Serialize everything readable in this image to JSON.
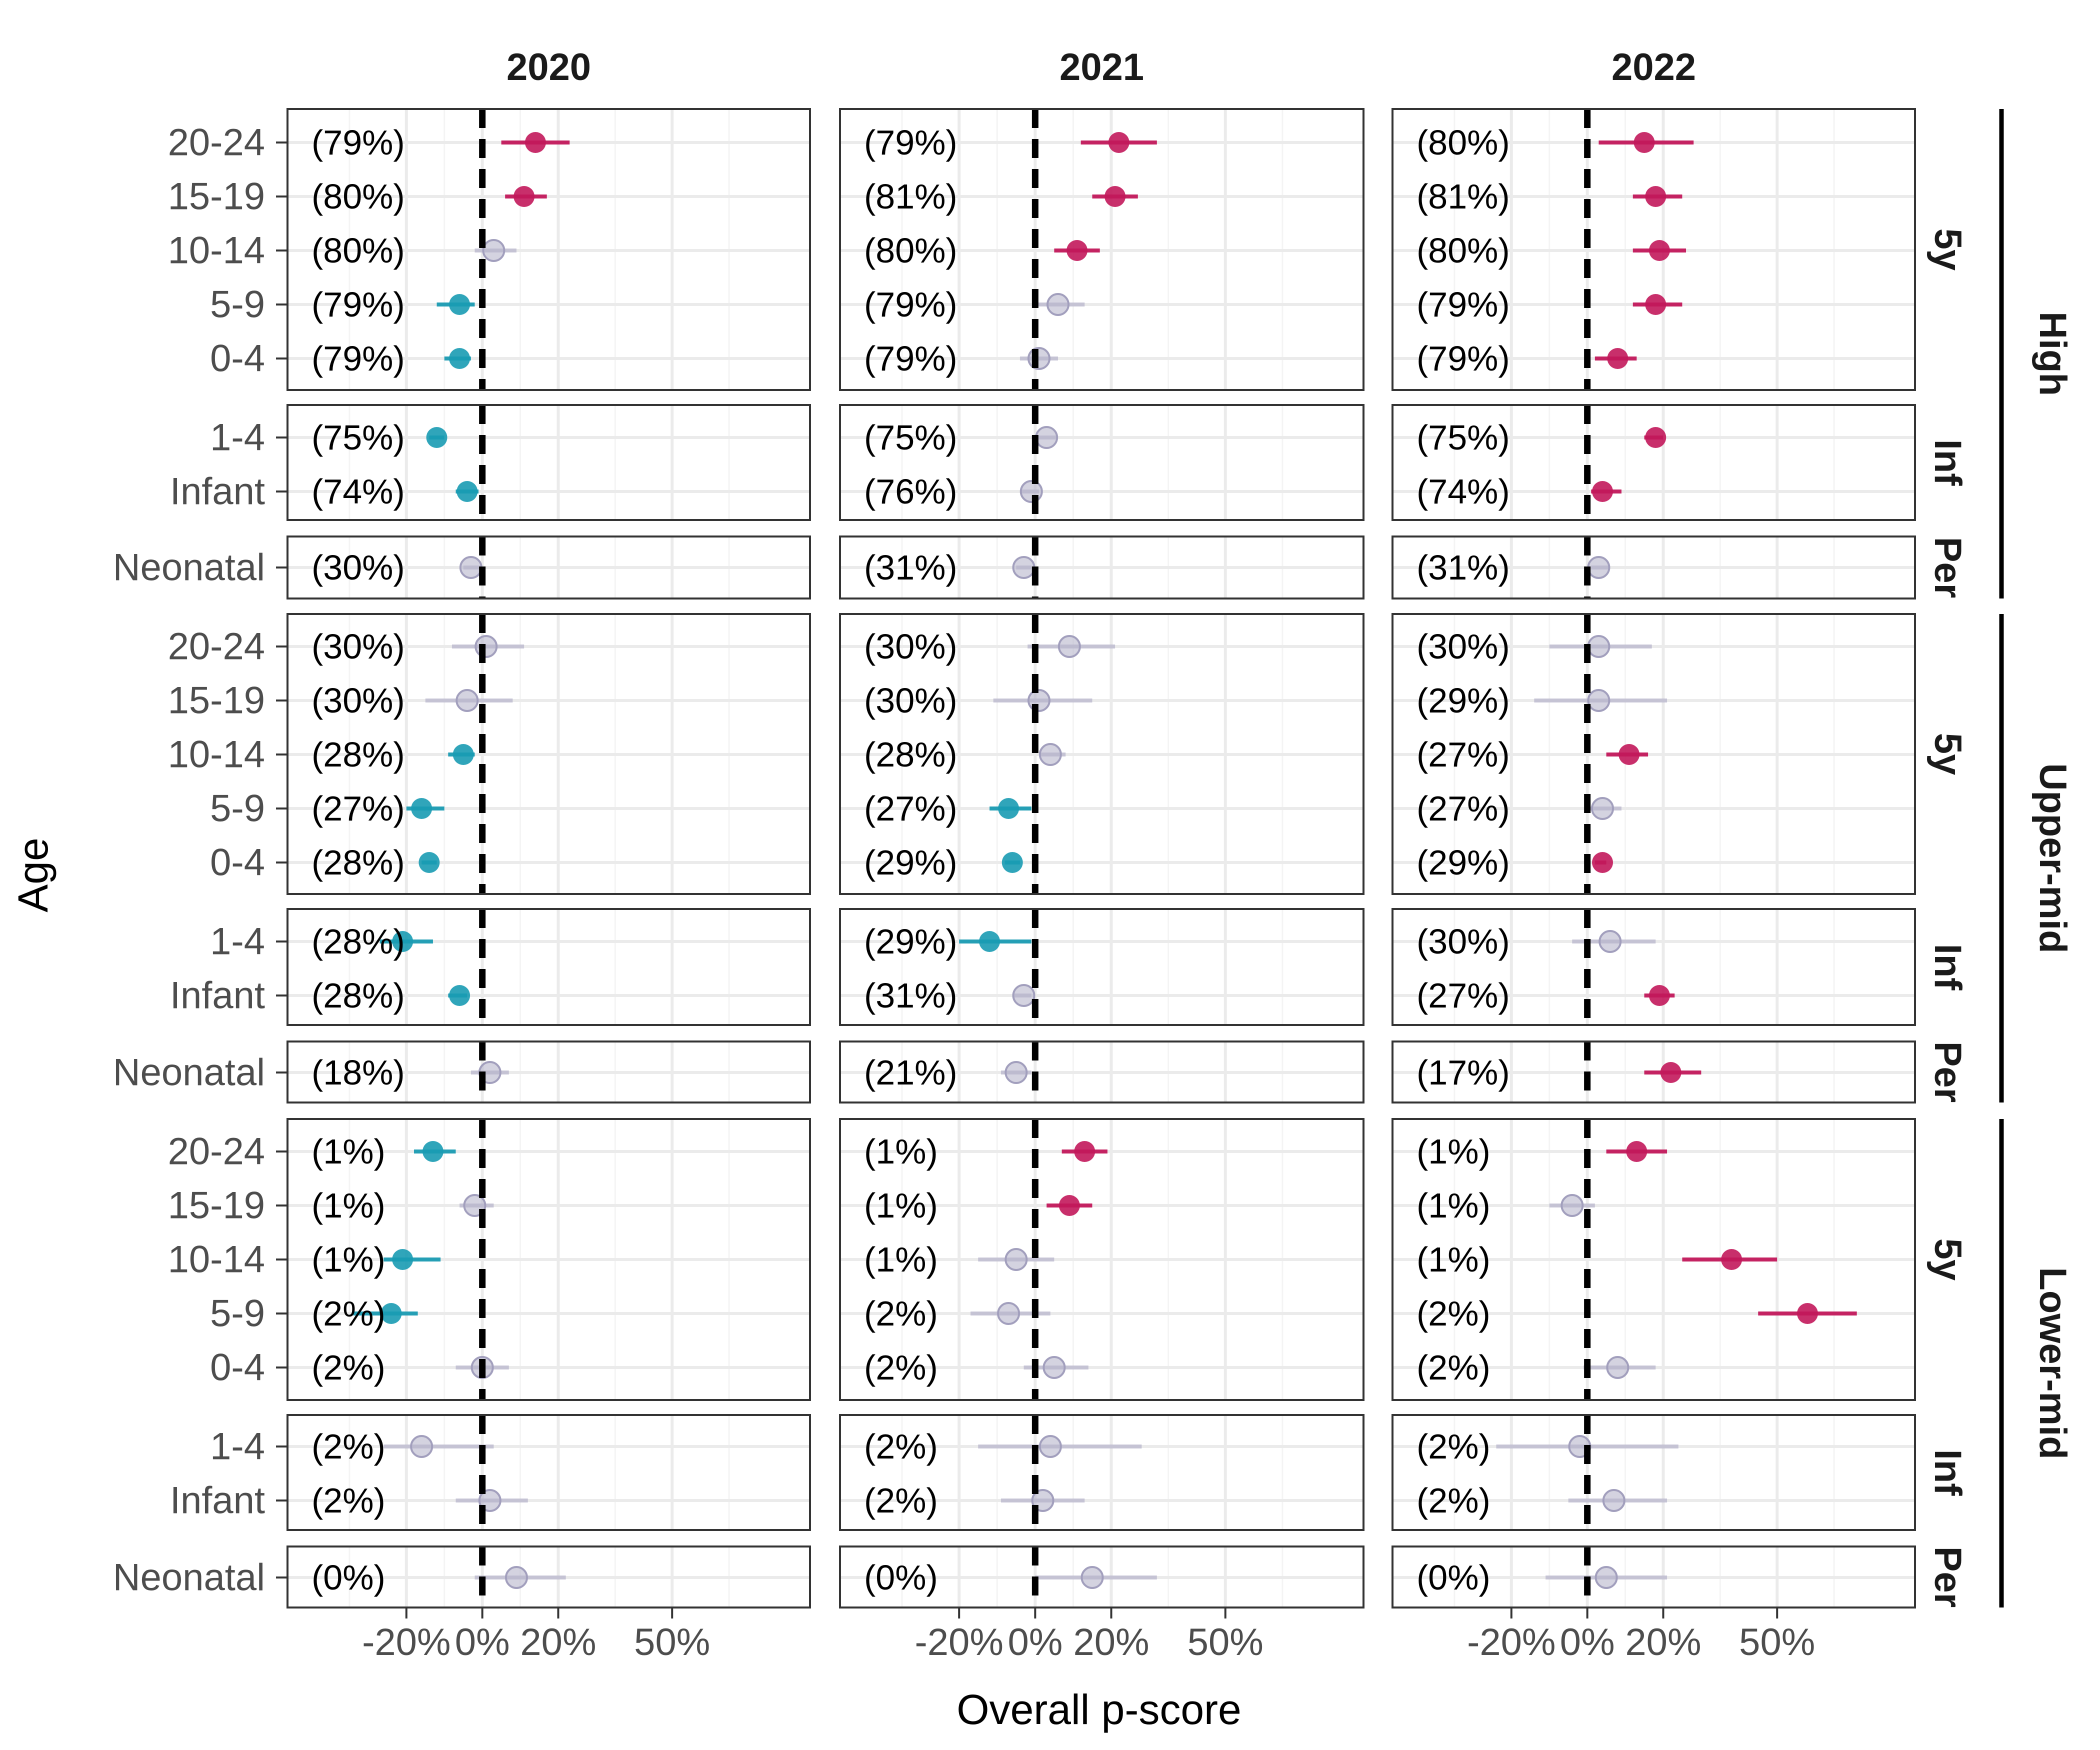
{
  "chart_data": {
    "type": "forest",
    "xlabel": "Overall p-score",
    "ylabel": "Age",
    "x_ticks": [
      {
        "value": -0.2,
        "label": "-20%"
      },
      {
        "value": 0.0,
        "label": "0%"
      },
      {
        "value": 0.2,
        "label": "20%"
      },
      {
        "value": 0.5,
        "label": "50%"
      }
    ],
    "xlim": [
      -0.45,
      0.8
    ],
    "reference_line": 0,
    "columns": [
      "2020",
      "2021",
      "2022"
    ],
    "income_groups": [
      "High",
      "Upper-mid",
      "Lower-mid"
    ],
    "subgroups": [
      {
        "label": "5y",
        "ages": [
          "20-24",
          "15-19",
          "10-14",
          "5-9",
          "0-4"
        ]
      },
      {
        "label": "Inf",
        "ages": [
          "1-4",
          "Infant"
        ]
      },
      {
        "label": "Per",
        "ages": [
          "Neonatal"
        ]
      }
    ],
    "colors": {
      "positive": "#c2185b",
      "negative": "#1a9bb2",
      "not_significant": "#b8b6cc"
    },
    "panels": {
      "High": {
        "2020": [
          {
            "age": "20-24",
            "est": 0.14,
            "lo": 0.05,
            "hi": 0.23,
            "sig": "positive",
            "pct": "(79%)"
          },
          {
            "age": "15-19",
            "est": 0.11,
            "lo": 0.06,
            "hi": 0.17,
            "sig": "positive",
            "pct": "(80%)"
          },
          {
            "age": "10-14",
            "est": 0.03,
            "lo": -0.02,
            "hi": 0.09,
            "sig": "ns",
            "pct": "(80%)"
          },
          {
            "age": "5-9",
            "est": -0.06,
            "lo": -0.12,
            "hi": -0.02,
            "sig": "negative",
            "pct": "(79%)"
          },
          {
            "age": "0-4",
            "est": -0.06,
            "lo": -0.1,
            "hi": -0.03,
            "sig": "negative",
            "pct": "(79%)"
          },
          {
            "age": "1-4",
            "est": -0.12,
            "lo": -0.14,
            "hi": -0.1,
            "sig": "negative",
            "pct": "(75%)"
          },
          {
            "age": "Infant",
            "est": -0.04,
            "lo": -0.07,
            "hi": -0.01,
            "sig": "negative",
            "pct": "(74%)"
          },
          {
            "age": "Neonatal",
            "est": -0.03,
            "lo": -0.05,
            "hi": 0.0,
            "sig": "ns",
            "pct": "(30%)"
          }
        ],
        "2021": [
          {
            "age": "20-24",
            "est": 0.22,
            "lo": 0.12,
            "hi": 0.32,
            "sig": "positive",
            "pct": "(79%)"
          },
          {
            "age": "15-19",
            "est": 0.21,
            "lo": 0.15,
            "hi": 0.27,
            "sig": "positive",
            "pct": "(81%)"
          },
          {
            "age": "10-14",
            "est": 0.11,
            "lo": 0.05,
            "hi": 0.17,
            "sig": "positive",
            "pct": "(80%)"
          },
          {
            "age": "5-9",
            "est": 0.06,
            "lo": 0.0,
            "hi": 0.13,
            "sig": "ns",
            "pct": "(79%)"
          },
          {
            "age": "0-4",
            "est": 0.01,
            "lo": -0.04,
            "hi": 0.06,
            "sig": "ns",
            "pct": "(79%)"
          },
          {
            "age": "1-4",
            "est": 0.03,
            "lo": 0.0,
            "hi": 0.06,
            "sig": "ns",
            "pct": "(75%)"
          },
          {
            "age": "Infant",
            "est": -0.01,
            "lo": -0.04,
            "hi": 0.01,
            "sig": "ns",
            "pct": "(76%)"
          },
          {
            "age": "Neonatal",
            "est": -0.03,
            "lo": -0.05,
            "hi": -0.01,
            "sig": "ns",
            "pct": "(31%)"
          }
        ],
        "2022": [
          {
            "age": "20-24",
            "est": 0.15,
            "lo": 0.03,
            "hi": 0.28,
            "sig": "positive",
            "pct": "(80%)"
          },
          {
            "age": "15-19",
            "est": 0.18,
            "lo": 0.12,
            "hi": 0.25,
            "sig": "positive",
            "pct": "(81%)"
          },
          {
            "age": "10-14",
            "est": 0.19,
            "lo": 0.12,
            "hi": 0.26,
            "sig": "positive",
            "pct": "(80%)"
          },
          {
            "age": "5-9",
            "est": 0.18,
            "lo": 0.12,
            "hi": 0.25,
            "sig": "positive",
            "pct": "(79%)"
          },
          {
            "age": "0-4",
            "est": 0.08,
            "lo": 0.02,
            "hi": 0.13,
            "sig": "positive",
            "pct": "(79%)"
          },
          {
            "age": "1-4",
            "est": 0.18,
            "lo": 0.15,
            "hi": 0.2,
            "sig": "positive",
            "pct": "(75%)"
          },
          {
            "age": "Infant",
            "est": 0.04,
            "lo": 0.01,
            "hi": 0.09,
            "sig": "positive",
            "pct": "(74%)"
          },
          {
            "age": "Neonatal",
            "est": 0.03,
            "lo": 0.01,
            "hi": 0.06,
            "sig": "ns",
            "pct": "(31%)"
          }
        ]
      },
      "Upper-mid": {
        "2020": [
          {
            "age": "20-24",
            "est": 0.01,
            "lo": -0.08,
            "hi": 0.11,
            "sig": "ns",
            "pct": "(30%)"
          },
          {
            "age": "15-19",
            "est": -0.04,
            "lo": -0.15,
            "hi": 0.08,
            "sig": "ns",
            "pct": "(30%)"
          },
          {
            "age": "10-14",
            "est": -0.05,
            "lo": -0.09,
            "hi": -0.02,
            "sig": "negative",
            "pct": "(28%)"
          },
          {
            "age": "5-9",
            "est": -0.16,
            "lo": -0.2,
            "hi": -0.1,
            "sig": "negative",
            "pct": "(27%)"
          },
          {
            "age": "0-4",
            "est": -0.14,
            "lo": -0.16,
            "hi": -0.12,
            "sig": "negative",
            "pct": "(28%)"
          },
          {
            "age": "1-4",
            "est": -0.21,
            "lo": -0.27,
            "hi": -0.13,
            "sig": "negative",
            "pct": "(28%)"
          },
          {
            "age": "Infant",
            "est": -0.06,
            "lo": -0.09,
            "hi": -0.04,
            "sig": "negative",
            "pct": "(28%)"
          },
          {
            "age": "Neonatal",
            "est": 0.02,
            "lo": -0.03,
            "hi": 0.07,
            "sig": "ns",
            "pct": "(18%)"
          }
        ],
        "2021": [
          {
            "age": "20-24",
            "est": 0.09,
            "lo": -0.02,
            "hi": 0.21,
            "sig": "ns",
            "pct": "(30%)"
          },
          {
            "age": "15-19",
            "est": 0.01,
            "lo": -0.11,
            "hi": 0.15,
            "sig": "ns",
            "pct": "(30%)"
          },
          {
            "age": "10-14",
            "est": 0.04,
            "lo": 0.01,
            "hi": 0.08,
            "sig": "ns",
            "pct": "(28%)"
          },
          {
            "age": "5-9",
            "est": -0.07,
            "lo": -0.12,
            "hi": -0.01,
            "sig": "negative",
            "pct": "(27%)"
          },
          {
            "age": "0-4",
            "est": -0.06,
            "lo": -0.08,
            "hi": -0.04,
            "sig": "negative",
            "pct": "(29%)"
          },
          {
            "age": "1-4",
            "est": -0.12,
            "lo": -0.2,
            "hi": -0.01,
            "sig": "negative",
            "pct": "(29%)"
          },
          {
            "age": "Infant",
            "est": -0.03,
            "lo": -0.06,
            "hi": -0.01,
            "sig": "ns",
            "pct": "(31%)"
          },
          {
            "age": "Neonatal",
            "est": -0.05,
            "lo": -0.09,
            "hi": -0.01,
            "sig": "ns",
            "pct": "(21%)"
          }
        ],
        "2022": [
          {
            "age": "20-24",
            "est": 0.03,
            "lo": -0.1,
            "hi": 0.17,
            "sig": "ns",
            "pct": "(30%)"
          },
          {
            "age": "15-19",
            "est": 0.03,
            "lo": -0.14,
            "hi": 0.21,
            "sig": "ns",
            "pct": "(29%)"
          },
          {
            "age": "10-14",
            "est": 0.11,
            "lo": 0.05,
            "hi": 0.16,
            "sig": "positive",
            "pct": "(27%)"
          },
          {
            "age": "5-9",
            "est": 0.04,
            "lo": 0.0,
            "hi": 0.09,
            "sig": "ns",
            "pct": "(27%)"
          },
          {
            "age": "0-4",
            "est": 0.04,
            "lo": 0.02,
            "hi": 0.05,
            "sig": "positive",
            "pct": "(29%)"
          },
          {
            "age": "1-4",
            "est": 0.06,
            "lo": -0.04,
            "hi": 0.18,
            "sig": "ns",
            "pct": "(30%)"
          },
          {
            "age": "Infant",
            "est": 0.19,
            "lo": 0.15,
            "hi": 0.23,
            "sig": "positive",
            "pct": "(27%)"
          },
          {
            "age": "Neonatal",
            "est": 0.22,
            "lo": 0.15,
            "hi": 0.3,
            "sig": "positive",
            "pct": "(17%)"
          }
        ]
      },
      "Lower-mid": {
        "2020": [
          {
            "age": "20-24",
            "est": -0.13,
            "lo": -0.18,
            "hi": -0.07,
            "sig": "negative",
            "pct": "(1%)"
          },
          {
            "age": "15-19",
            "est": -0.02,
            "lo": -0.06,
            "hi": 0.03,
            "sig": "ns",
            "pct": "(1%)"
          },
          {
            "age": "10-14",
            "est": -0.21,
            "lo": -0.26,
            "hi": -0.11,
            "sig": "negative",
            "pct": "(1%)"
          },
          {
            "age": "5-9",
            "est": -0.24,
            "lo": -0.34,
            "hi": -0.17,
            "sig": "negative",
            "pct": "(2%)"
          },
          {
            "age": "0-4",
            "est": 0.0,
            "lo": -0.07,
            "hi": 0.07,
            "sig": "ns",
            "pct": "(2%)"
          },
          {
            "age": "1-4",
            "est": -0.16,
            "lo": -0.26,
            "hi": 0.03,
            "sig": "ns",
            "pct": "(2%)"
          },
          {
            "age": "Infant",
            "est": 0.02,
            "lo": -0.07,
            "hi": 0.12,
            "sig": "ns",
            "pct": "(2%)"
          },
          {
            "age": "Neonatal",
            "est": 0.09,
            "lo": -0.02,
            "hi": 0.22,
            "sig": "ns",
            "pct": "(0%)"
          }
        ],
        "2021": [
          {
            "age": "20-24",
            "est": 0.13,
            "lo": 0.07,
            "hi": 0.19,
            "sig": "positive",
            "pct": "(1%)"
          },
          {
            "age": "15-19",
            "est": 0.09,
            "lo": 0.03,
            "hi": 0.15,
            "sig": "positive",
            "pct": "(1%)"
          },
          {
            "age": "10-14",
            "est": -0.05,
            "lo": -0.15,
            "hi": 0.05,
            "sig": "ns",
            "pct": "(1%)"
          },
          {
            "age": "5-9",
            "est": -0.07,
            "lo": -0.17,
            "hi": 0.04,
            "sig": "ns",
            "pct": "(2%)"
          },
          {
            "age": "0-4",
            "est": 0.05,
            "lo": -0.03,
            "hi": 0.14,
            "sig": "ns",
            "pct": "(2%)"
          },
          {
            "age": "1-4",
            "est": 0.04,
            "lo": -0.15,
            "hi": 0.28,
            "sig": "ns",
            "pct": "(2%)"
          },
          {
            "age": "Infant",
            "est": 0.02,
            "lo": -0.09,
            "hi": 0.13,
            "sig": "ns",
            "pct": "(2%)"
          },
          {
            "age": "Neonatal",
            "est": 0.15,
            "lo": 0.0,
            "hi": 0.32,
            "sig": "ns",
            "pct": "(0%)"
          }
        ],
        "2022": [
          {
            "age": "20-24",
            "est": 0.13,
            "lo": 0.05,
            "hi": 0.21,
            "sig": "positive",
            "pct": "(1%)"
          },
          {
            "age": "15-19",
            "est": -0.04,
            "lo": -0.1,
            "hi": 0.02,
            "sig": "ns",
            "pct": "(1%)"
          },
          {
            "age": "10-14",
            "est": 0.38,
            "lo": 0.25,
            "hi": 0.5,
            "sig": "positive",
            "pct": "(1%)"
          },
          {
            "age": "5-9",
            "est": 0.58,
            "lo": 0.45,
            "hi": 0.71,
            "sig": "positive",
            "pct": "(2%)"
          },
          {
            "age": "0-4",
            "est": 0.08,
            "lo": -0.01,
            "hi": 0.18,
            "sig": "ns",
            "pct": "(2%)"
          },
          {
            "age": "1-4",
            "est": -0.02,
            "lo": -0.24,
            "hi": 0.24,
            "sig": "ns",
            "pct": "(2%)"
          },
          {
            "age": "Infant",
            "est": 0.07,
            "lo": -0.05,
            "hi": 0.21,
            "sig": "ns",
            "pct": "(2%)"
          },
          {
            "age": "Neonatal",
            "est": 0.05,
            "lo": -0.11,
            "hi": 0.21,
            "sig": "ns",
            "pct": "(0%)"
          }
        ]
      }
    }
  }
}
